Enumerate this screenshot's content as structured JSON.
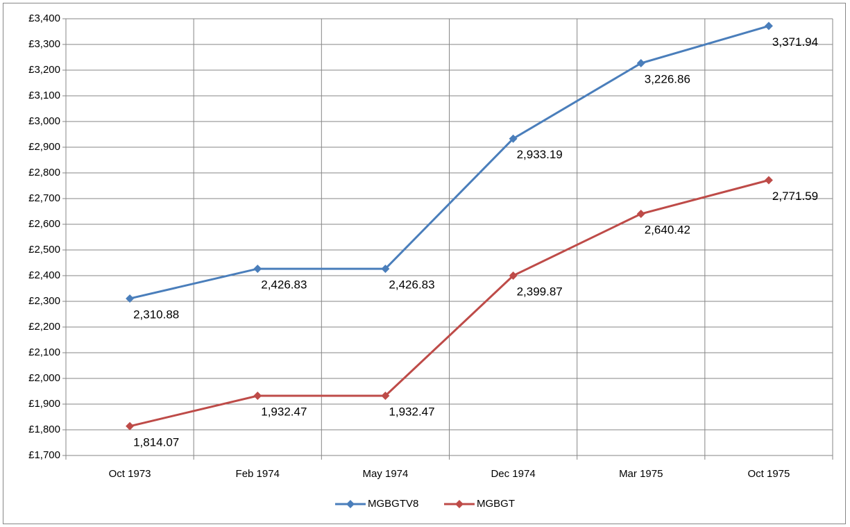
{
  "chart_data": {
    "type": "line",
    "categories": [
      "Oct 1973",
      "Feb 1974",
      "May 1974",
      "Dec 1974",
      "Mar 1975",
      "Oct 1975"
    ],
    "series": [
      {
        "name": "MGBGTV8",
        "color": "#4a7ebb",
        "values": [
          2310.88,
          2426.83,
          2426.83,
          2933.19,
          3226.86,
          3371.94
        ],
        "value_labels": [
          "2,310.88",
          "2,426.83",
          "2,426.83",
          "2,933.19",
          "3,226.86",
          "3,371.94"
        ]
      },
      {
        "name": "MGBGT",
        "color": "#be4b48",
        "values": [
          1814.07,
          1932.47,
          1932.47,
          2399.87,
          2640.42,
          2771.59
        ],
        "value_labels": [
          "1,814.07",
          "1,932.47",
          "1,932.47",
          "2,399.87",
          "2,640.42",
          "2,771.59"
        ]
      }
    ],
    "ylim": [
      1700,
      3400
    ],
    "yticks": [
      {
        "value": 1700,
        "label": "£1,700"
      },
      {
        "value": 1800,
        "label": "£1,800"
      },
      {
        "value": 1900,
        "label": "£1,900"
      },
      {
        "value": 2000,
        "label": "£2,000"
      },
      {
        "value": 2100,
        "label": "£2,100"
      },
      {
        "value": 2200,
        "label": "£2,200"
      },
      {
        "value": 2300,
        "label": "£2,300"
      },
      {
        "value": 2400,
        "label": "£2,400"
      },
      {
        "value": 2500,
        "label": "£2,500"
      },
      {
        "value": 2600,
        "label": "£2,600"
      },
      {
        "value": 2700,
        "label": "£2,700"
      },
      {
        "value": 2800,
        "label": "£2,800"
      },
      {
        "value": 2900,
        "label": "£2,900"
      },
      {
        "value": 3000,
        "label": "£3,000"
      },
      {
        "value": 3100,
        "label": "£3,100"
      },
      {
        "value": 3200,
        "label": "£3,200"
      },
      {
        "value": 3300,
        "label": "£3,300"
      },
      {
        "value": 3400,
        "label": "£3,400"
      }
    ],
    "grid": true,
    "legend": "bottom"
  }
}
